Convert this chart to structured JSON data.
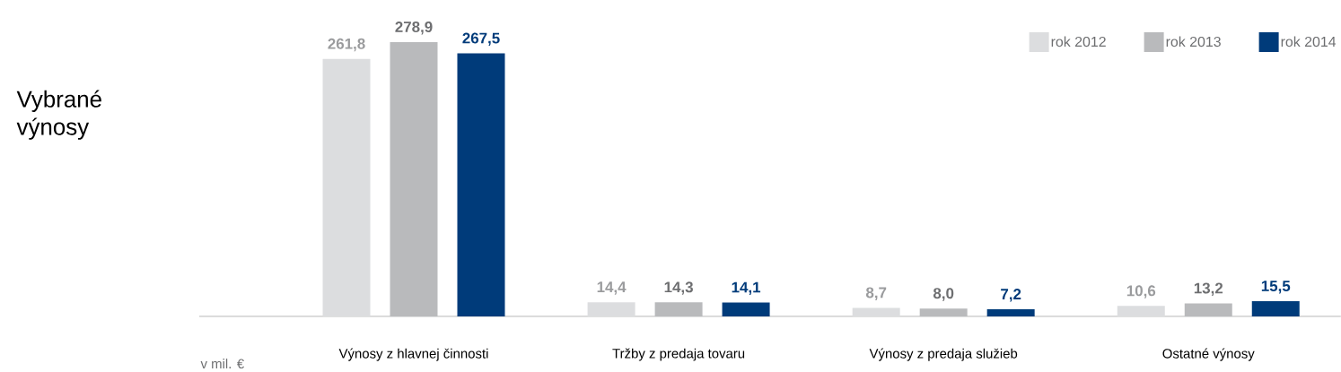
{
  "chart_data": {
    "type": "bar",
    "title": "Vybrané výnosy",
    "categories": [
      "Výnosy z hlavnej činnosti",
      "Tržby z predaja tovaru",
      "Výnosy z predaja služieb",
      "Ostatné  výnosy"
    ],
    "series": [
      {
        "name": "rok 2012",
        "color": "#dcdddf",
        "values": [
          261.8,
          14.4,
          8.7,
          10.6
        ],
        "value_labels": [
          "261,8",
          "14,4",
          "8,7",
          "10,6"
        ]
      },
      {
        "name": "rok 2013",
        "color": "#b9babc",
        "values": [
          278.9,
          14.3,
          8.0,
          13.2
        ],
        "value_labels": [
          "278,9",
          "14,3",
          "8,0",
          "13,2"
        ]
      },
      {
        "name": "rok 2014",
        "color": "#003b7a",
        "values": [
          267.5,
          14.1,
          7.2,
          15.5
        ],
        "value_labels": [
          "267,5",
          "14,1",
          "7,2",
          "15,5"
        ]
      }
    ],
    "legend": "top right",
    "annotations": [
      "v mil. €"
    ]
  }
}
